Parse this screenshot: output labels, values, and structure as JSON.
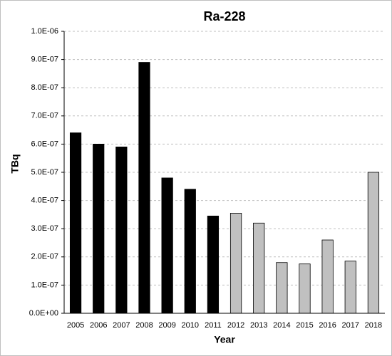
{
  "chart_data": {
    "type": "bar",
    "title": "Ra-228",
    "xlabel": "Year",
    "ylabel": "TBq",
    "categories": [
      "2005",
      "2006",
      "2007",
      "2008",
      "2009",
      "2010",
      "2011",
      "2012",
      "2013",
      "2014",
      "2015",
      "2016",
      "2017",
      "2018"
    ],
    "values": [
      6.4e-07,
      6e-07,
      5.9e-07,
      8.9e-07,
      4.8e-07,
      4.4e-07,
      3.45e-07,
      3.55e-07,
      3.2e-07,
      1.8e-07,
      1.75e-07,
      2.6e-07,
      1.85e-07,
      5e-07
    ],
    "colors": [
      "#000000",
      "#000000",
      "#000000",
      "#000000",
      "#000000",
      "#000000",
      "#000000",
      "#c0c0c0",
      "#c0c0c0",
      "#c0c0c0",
      "#c0c0c0",
      "#c0c0c0",
      "#c0c0c0",
      "#c0c0c0"
    ],
    "edgecolor": "#000000",
    "ylim": [
      0,
      1e-06
    ],
    "yticks": [
      {
        "value": 0,
        "label": "0.0E+00"
      },
      {
        "value": 1e-07,
        "label": "1.0E-07"
      },
      {
        "value": 2e-07,
        "label": "2.0E-07"
      },
      {
        "value": 3e-07,
        "label": "3.0E-07"
      },
      {
        "value": 4e-07,
        "label": "4.0E-07"
      },
      {
        "value": 5e-07,
        "label": "5.0E-07"
      },
      {
        "value": 6e-07,
        "label": "6.0E-07"
      },
      {
        "value": 7e-07,
        "label": "7.0E-07"
      },
      {
        "value": 8e-07,
        "label": "8.0E-07"
      },
      {
        "value": 9e-07,
        "label": "9.0E-07"
      },
      {
        "value": 1e-06,
        "label": "1.0E-06"
      }
    ],
    "grid": true
  }
}
